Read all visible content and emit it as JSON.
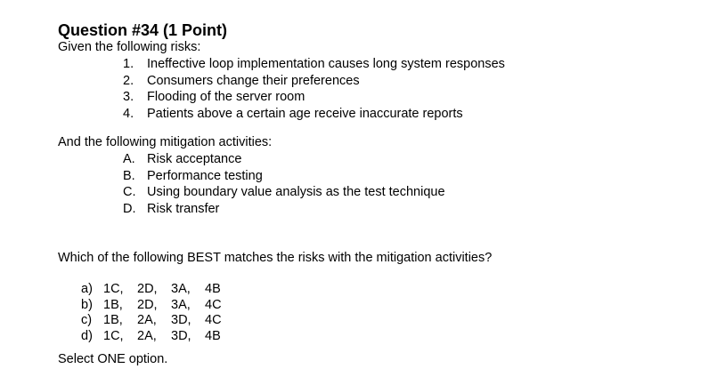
{
  "question": {
    "title": "Question #34 (1 Point)",
    "intro": "Given the following risks:",
    "risks": [
      {
        "marker": "1.",
        "text": "Ineffective loop implementation causes long system responses"
      },
      {
        "marker": "2.",
        "text": "Consumers change their preferences"
      },
      {
        "marker": "3.",
        "text": "Flooding of the server room"
      },
      {
        "marker": "4.",
        "text": "Patients above a certain age receive inaccurate reports"
      }
    ],
    "mitigation_intro": "And the following mitigation activities:",
    "mitigations": [
      {
        "marker": "A.",
        "text": "Risk acceptance"
      },
      {
        "marker": "B.",
        "text": "Performance testing"
      },
      {
        "marker": "C.",
        "text": "Using boundary value analysis as the test technique"
      },
      {
        "marker": "D.",
        "text": "Risk transfer"
      }
    ],
    "prompt": "Which of the following BEST matches the risks with the mitigation activities?",
    "options": [
      {
        "marker": "a)",
        "pairs": [
          "1C,",
          "2D,",
          "3A,",
          "4B"
        ]
      },
      {
        "marker": "b)",
        "pairs": [
          "1B,",
          "2D,",
          "3A,",
          "4C"
        ]
      },
      {
        "marker": "c)",
        "pairs": [
          "1B,",
          "2A,",
          "3D,",
          "4C"
        ]
      },
      {
        "marker": "d)",
        "pairs": [
          "1C,",
          "2A,",
          "3D,",
          "4B"
        ]
      }
    ],
    "instruction": "Select ONE option."
  }
}
